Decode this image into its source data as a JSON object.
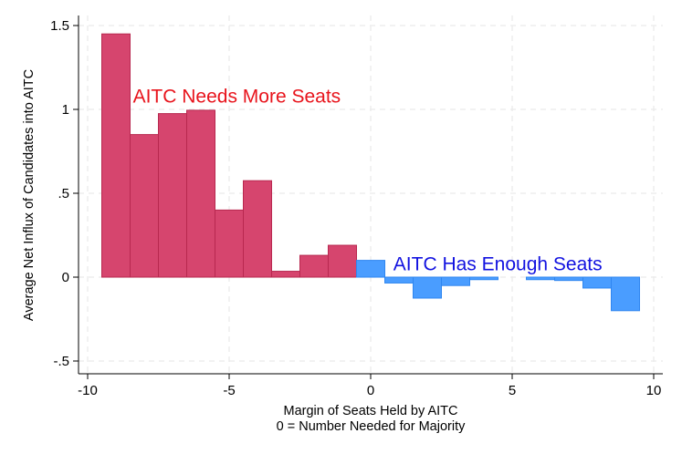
{
  "chart_data": {
    "type": "bar",
    "xlabel": "Margin of Seats Held by AITC",
    "xlabel_line2": "0 = Number Needed for Majority",
    "ylabel": "Average Net Influx of Candidates into AITC",
    "xlim": [
      -10,
      10
    ],
    "ylim": [
      -0.5,
      1.5
    ],
    "xticks": [
      -10,
      -5,
      0,
      5,
      10
    ],
    "xtick_labels": [
      "-10",
      "-5",
      "0",
      "5",
      "10"
    ],
    "yticks": [
      -0.5,
      0,
      0.5,
      1,
      1.5
    ],
    "ytick_labels": [
      "-.5",
      "0",
      ".5",
      "1",
      "1.5"
    ],
    "grid": true,
    "bin_width": 1,
    "series": [
      {
        "name": "AITC Needs More Seats",
        "color": "#d6456e",
        "x": [
          -9,
          -8,
          -7,
          -6,
          -5,
          -4,
          -3,
          -2,
          -1
        ],
        "values": [
          1.45,
          0.85,
          0.975,
          0.995,
          0.4,
          0.575,
          0.035,
          0.13,
          0.19
        ]
      },
      {
        "name": "AITC Has Enough Seats",
        "color": "#4a9dff",
        "x": [
          0,
          1,
          2,
          3,
          4,
          6,
          7,
          8,
          9
        ],
        "values": [
          0.1,
          -0.035,
          -0.125,
          -0.05,
          -0.015,
          -0.015,
          -0.02,
          -0.065,
          -0.2
        ]
      }
    ],
    "annotations": [
      {
        "text": "AITC Needs More Seats",
        "x": -8.4,
        "y": 1.04,
        "color": "#e8141c"
      },
      {
        "text": "AITC Has Enough Seats",
        "x": 0.8,
        "y": 0.04,
        "color": "#1212e0"
      }
    ]
  }
}
